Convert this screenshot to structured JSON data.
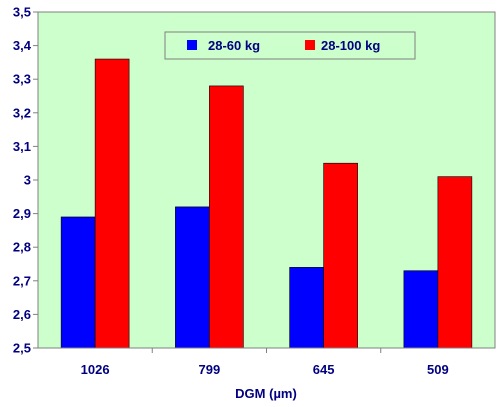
{
  "chart_data": {
    "type": "bar",
    "categories": [
      "1026",
      "799",
      "645",
      "509"
    ],
    "series": [
      {
        "name": "28-60 kg",
        "values": [
          2.89,
          2.92,
          2.74,
          2.73
        ],
        "color": "#0000FF"
      },
      {
        "name": "28-100 kg",
        "values": [
          3.36,
          3.28,
          3.05,
          3.01
        ],
        "color": "#FF0000"
      }
    ],
    "title": "",
    "xlabel": "DGM (µm)",
    "ylabel": "",
    "ylim": [
      2.5,
      3.5
    ],
    "yticks": [
      "2,5",
      "2,6",
      "2,7",
      "2,8",
      "2,9",
      "3",
      "3,1",
      "3,2",
      "3,3",
      "3,4",
      "3,5"
    ],
    "grid": false,
    "legend_position": "top-right",
    "colors": {
      "plot_background": "#CCFFCC",
      "axis": "#808080",
      "text": "#000080"
    }
  }
}
